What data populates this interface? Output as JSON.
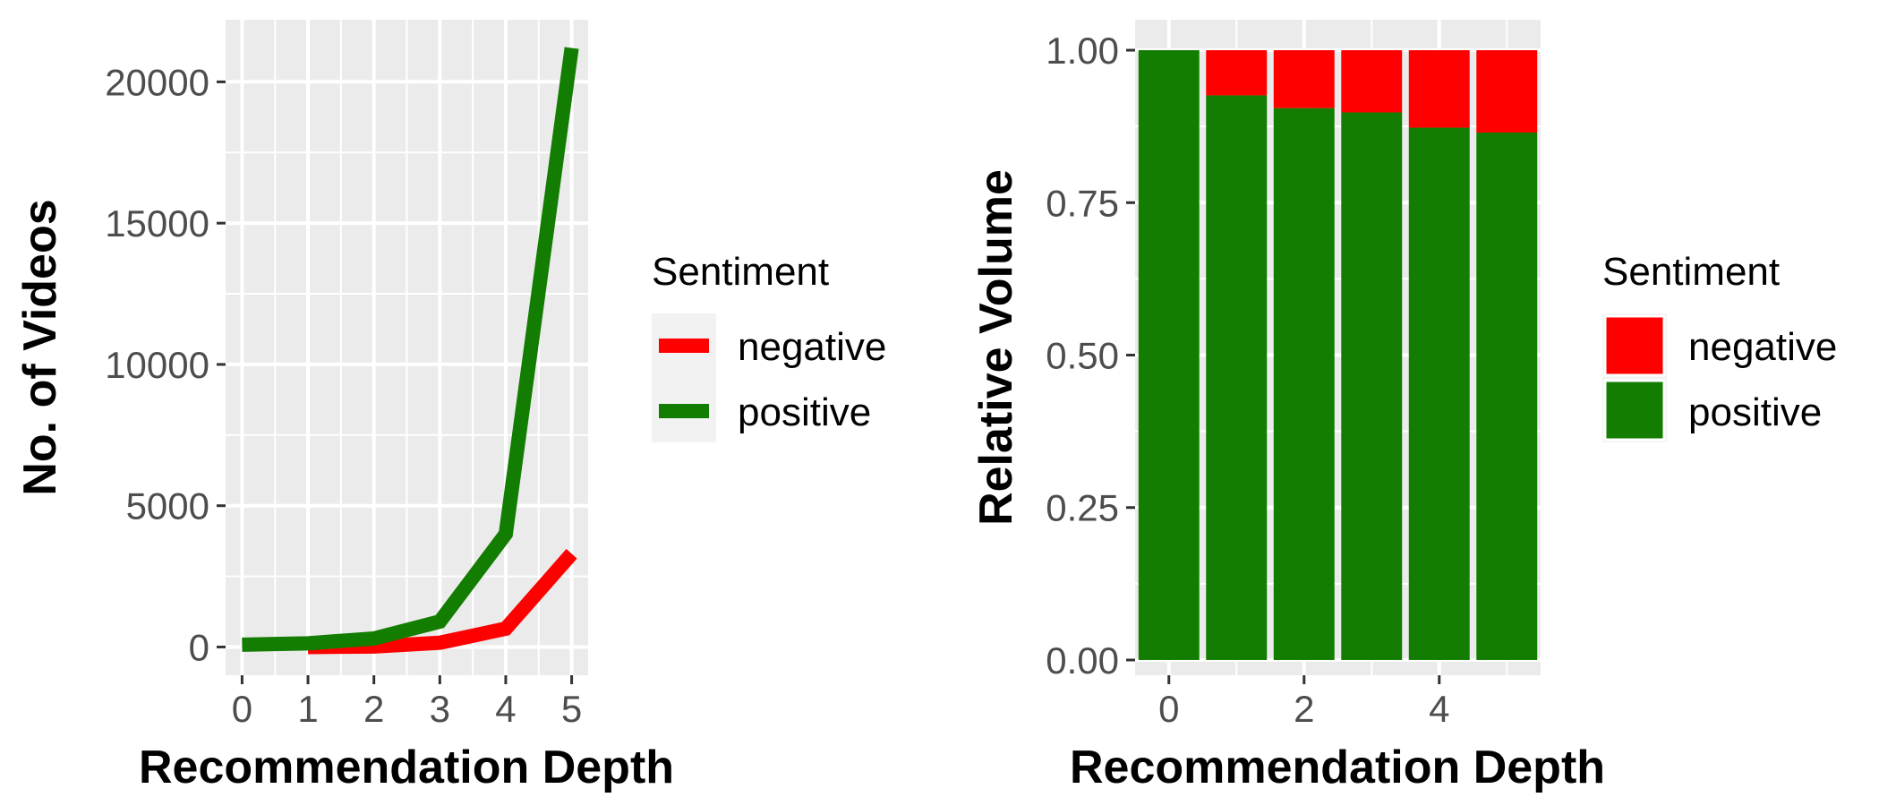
{
  "chart_data": [
    {
      "type": "line",
      "xlabel": "Recommendation Depth",
      "ylabel": "No. of Videos",
      "x": [
        0,
        1,
        2,
        3,
        4,
        5
      ],
      "xlim": [
        -0.25,
        5.25
      ],
      "ylim": [
        -1000,
        22200
      ],
      "x_ticks": [
        "0",
        "1",
        "2",
        "3",
        "4",
        "5"
      ],
      "y_ticks": [
        "0",
        "5000",
        "10000",
        "15000",
        "20000"
      ],
      "y_tick_values": [
        0,
        5000,
        10000,
        15000,
        20000
      ],
      "grid": true,
      "legend_position": "right",
      "legend_title": "Sentiment",
      "series": [
        {
          "name": "negative",
          "color": "#FF0000",
          "x": [
            1,
            2,
            3,
            4,
            5
          ],
          "values": [
            0,
            20,
            150,
            650,
            3300
          ]
        },
        {
          "name": "positive",
          "color": "#127D00",
          "x": [
            0,
            1,
            2,
            3,
            4,
            5
          ],
          "values": [
            80,
            130,
            300,
            900,
            4000,
            21200
          ]
        }
      ]
    },
    {
      "type": "bar",
      "stacked": true,
      "xlabel": "Recommendation Depth",
      "ylabel": "Relative Volume",
      "categories": [
        0,
        1,
        2,
        3,
        4,
        5
      ],
      "xlim": [
        -0.5,
        5.5
      ],
      "ylim": [
        -0.025,
        1.05
      ],
      "x_ticks": [
        "0",
        "2",
        "4"
      ],
      "x_tick_values": [
        0,
        2,
        4
      ],
      "y_ticks": [
        "0.00",
        "0.25",
        "0.50",
        "0.75",
        "1.00"
      ],
      "y_tick_values": [
        0,
        0.25,
        0.5,
        0.75,
        1.0
      ],
      "grid": true,
      "legend_position": "right",
      "legend_title": "Sentiment",
      "series": [
        {
          "name": "positive",
          "color": "#127D00",
          "values": [
            1.0,
            0.926,
            0.905,
            0.898,
            0.873,
            0.865
          ]
        },
        {
          "name": "negative",
          "color": "#FF0000",
          "values": [
            0.0,
            0.074,
            0.095,
            0.102,
            0.127,
            0.135
          ]
        }
      ]
    }
  ]
}
